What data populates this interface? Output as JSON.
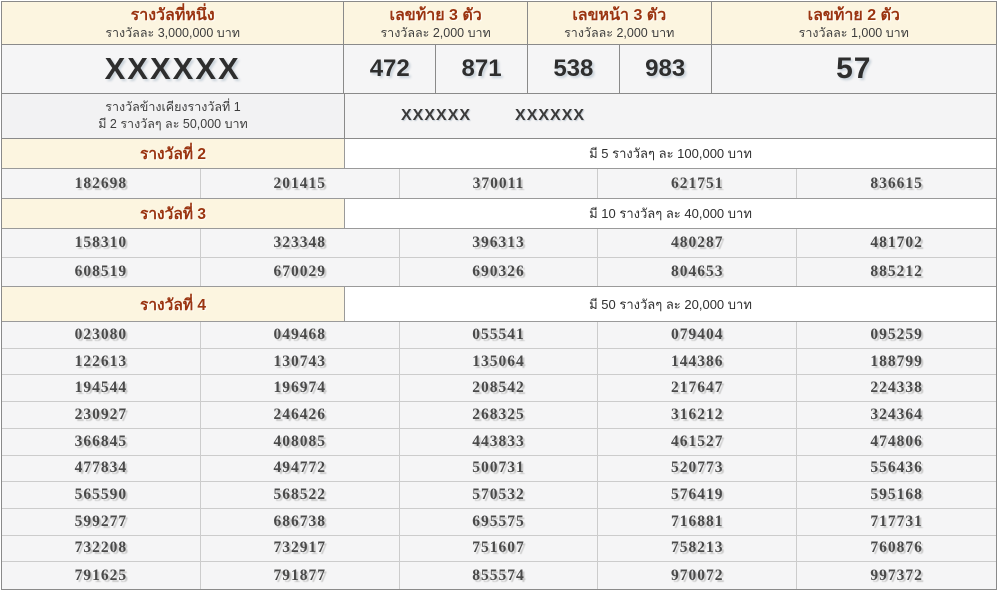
{
  "top_header": {
    "first_prize": {
      "title": "รางวัลที่หนึ่ง",
      "subtitle": "รางวัลละ 3,000,000 บาท",
      "number": "XXXXXX"
    },
    "last_three": {
      "title": "เลขท้าย 3 ตัว",
      "subtitle": "รางวัลละ 2,000 บาท",
      "numbers": [
        "472",
        "871"
      ]
    },
    "front_three": {
      "title": "เลขหน้า 3 ตัว",
      "subtitle": "รางวัลละ 2,000 บาท",
      "numbers": [
        "538",
        "983"
      ]
    },
    "last_two": {
      "title": "เลขท้าย 2 ตัว",
      "subtitle": "รางวัลละ 1,000 บาท",
      "number": "57"
    }
  },
  "side_prize": {
    "line1": "รางวัลข้างเคียงรางวัลที่ 1",
    "line2": "มี 2 รางวัลๆ ละ 50,000 บาท",
    "numbers": [
      "XXXXXX",
      "XXXXXX"
    ]
  },
  "sections": [
    {
      "title": "รางวัลที่ 2",
      "info": "มี 5 รางวัลๆ ละ 100,000 บาท",
      "numbers": [
        "182698",
        "201415",
        "370011",
        "621751",
        "836615"
      ]
    },
    {
      "title": "รางวัลที่ 3",
      "info": "มี 10 รางวัลๆ ละ 40,000 บาท",
      "numbers": [
        "158310",
        "323348",
        "396313",
        "480287",
        "481702",
        "608519",
        "670029",
        "690326",
        "804653",
        "885212"
      ]
    },
    {
      "title": "รางวัลที่ 4",
      "info": "มี 50 รางวัลๆ ละ 20,000 บาท",
      "numbers": [
        "023080",
        "049468",
        "055541",
        "079404",
        "095259",
        "122613",
        "130743",
        "135064",
        "144386",
        "188799",
        "194544",
        "196974",
        "208542",
        "217647",
        "224338",
        "230927",
        "246426",
        "268325",
        "316212",
        "324364",
        "366845",
        "408085",
        "443833",
        "461527",
        "474806",
        "477834",
        "494772",
        "500731",
        "520773",
        "556436",
        "565590",
        "568522",
        "570532",
        "576419",
        "595168",
        "599277",
        "686738",
        "695575",
        "716881",
        "717731",
        "732208",
        "732917",
        "751607",
        "758213",
        "760876",
        "791625",
        "791877",
        "855574",
        "970072",
        "997372"
      ]
    }
  ],
  "colors": {
    "header_background": "#fcf5e0",
    "section_title_red": "#9a3410",
    "row_background": "#f5f5f6",
    "border_dark": "#8a8a8a",
    "border_light": "#cccccc",
    "number_text": "#4a4a4a"
  }
}
